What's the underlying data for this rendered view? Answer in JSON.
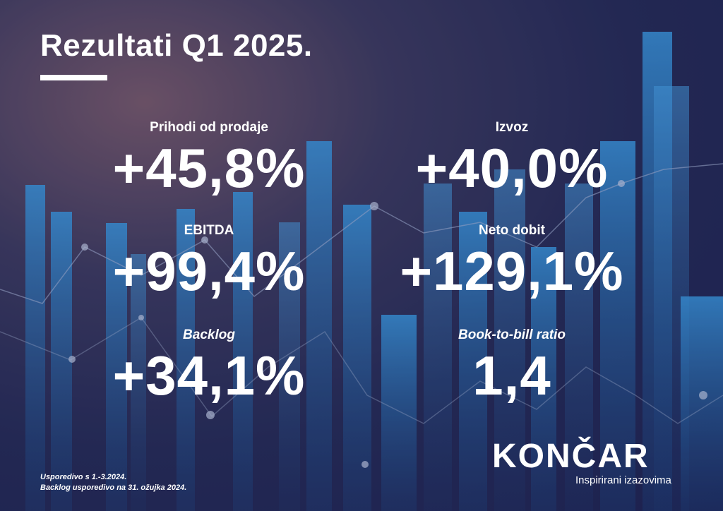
{
  "header": {
    "title": "Rezultati Q1 2025."
  },
  "metrics": [
    {
      "label": "Prihodi od prodaje",
      "value": "+45,8%"
    },
    {
      "label": "Izvoz",
      "value": "+40,0%"
    },
    {
      "label": "EBITDA",
      "value": "+99,4%"
    },
    {
      "label": "Neto dobit",
      "value": "+129,1%"
    },
    {
      "label": "Backlog",
      "value": "+34,1%"
    },
    {
      "label": "Book-to-bill ratio",
      "value": "1,4"
    }
  ],
  "footnotes": [
    "Usporedivo s 1.-3.2024.",
    "Backlog usporedivo na 31. ožujka 2024."
  ],
  "brand": {
    "logo_text": "KONČAR",
    "tagline": "Inspirirani izazovima"
  },
  "colors": {
    "background": "#252a55",
    "bars": "#2f8fd8",
    "text": "#ffffff"
  }
}
